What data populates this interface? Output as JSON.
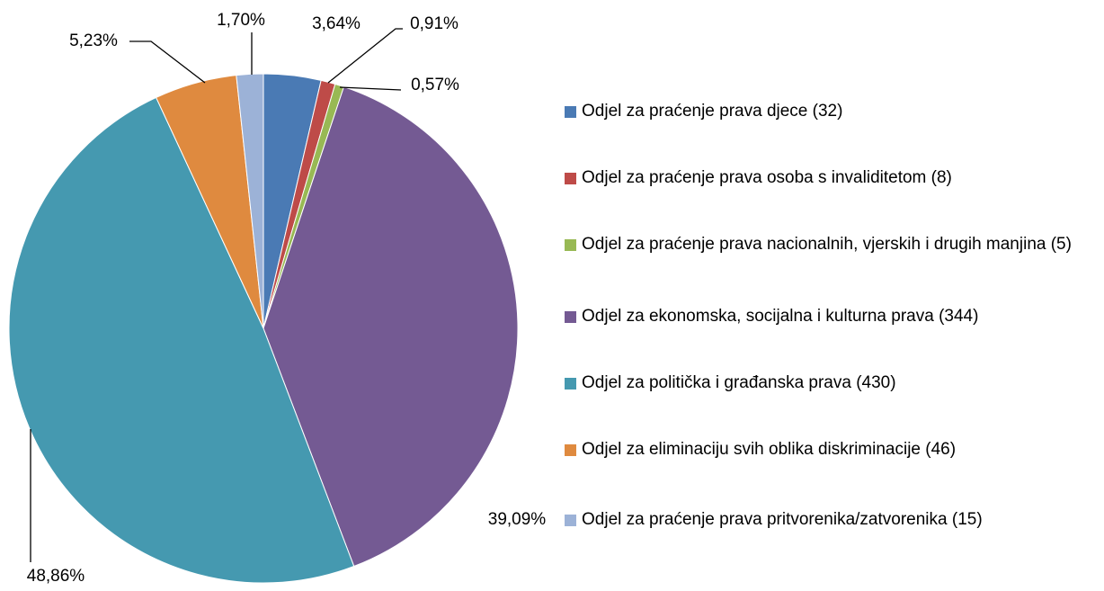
{
  "chart_data": {
    "type": "pie",
    "categories": [
      "Odjel za praćenje prava djece (32)",
      "Odjel za praćenje prava osoba s invaliditetom (8)",
      "Odjel za praćenje prava nacionalnih, vjerskih i drugih manjina (5)",
      "Odjel za ekonomska, socijalna i kulturna prava (344)",
      "Odjel za politička i građanska prava (430)",
      "Odjel za eliminaciju svih oblika diskriminacije (46)",
      "Odjel za praćenje prava pritvorenika/zatvorenika (15)"
    ],
    "values": [
      3.64,
      0.91,
      0.57,
      39.09,
      48.86,
      5.23,
      1.7
    ],
    "value_labels": [
      "3,64%",
      "0,91%",
      "0,57%",
      "39,09%",
      "48,86%",
      "5,23%",
      "1,70%"
    ],
    "colors": [
      "#4a7ab4",
      "#be4b48",
      "#98b954",
      "#745a93",
      "#4599b0",
      "#df8a3f",
      "#9cb2d7"
    ],
    "legend": "right"
  }
}
